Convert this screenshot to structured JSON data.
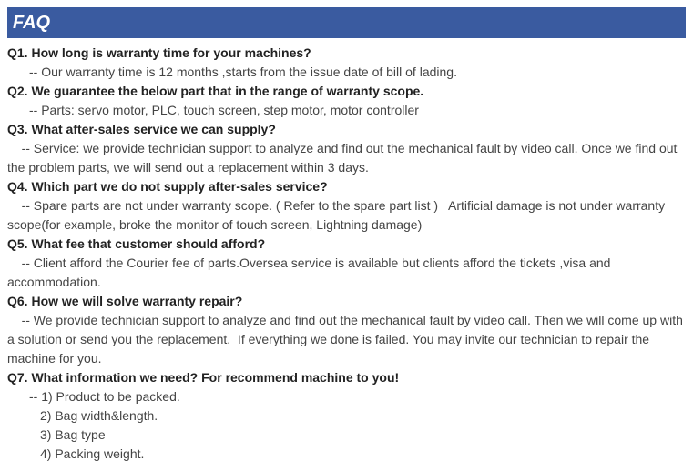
{
  "header": {
    "title": "FAQ"
  },
  "faq": [
    {
      "q": "Q1. How long is warranty time for your machines?",
      "a": [
        "-- Our warranty time is 12 months ,starts from the issue date of bill of lading."
      ],
      "indents": [
        "indent1"
      ]
    },
    {
      "q": "Q2. We guarantee the below part that in the range of warranty scope.",
      "a": [
        "-- Parts: servo motor, PLC, touch screen, step motor, motor controller"
      ],
      "indents": [
        "indent1"
      ]
    },
    {
      "q": "Q3. What after-sales service we can supply?",
      "a": [
        "    -- Service: we provide technician support to analyze and find out the mechanical fault by video call. Once we find out the problem parts, we will send out a replacement within 3 days."
      ],
      "indents": [
        ""
      ]
    },
    {
      "q": "Q4. Which part we do not supply after-sales service?",
      "a": [
        "    -- Spare parts are not under warranty scope. ( Refer to the spare part list )   Artificial damage is not under warranty scope(for example, broke the monitor of touch screen, Lightning damage)"
      ],
      "indents": [
        ""
      ]
    },
    {
      "q": "Q5. What fee that customer should afford?",
      "a": [
        "    -- Client afford the Courier fee of parts.Oversea service is available but clients afford the tickets ,visa and accommodation."
      ],
      "indents": [
        ""
      ]
    },
    {
      "q": "Q6. How we will solve warranty repair?",
      "a": [
        "    -- We provide technician support to analyze and find out the mechanical fault by video call. Then we will come up with a solution or send you the replacement.  If everything we done is failed. You may invite our technician to repair the machine for you."
      ],
      "indents": [
        ""
      ]
    },
    {
      "q": "Q7. What information we need? For recommend machine to you!",
      "a": [
        "-- 1) Product to be packed.",
        "2) Bag width&length.",
        "3) Bag type",
        "4) Packing weight."
      ],
      "indents": [
        "indent1",
        "indent2",
        "indent2",
        "indent2"
      ]
    }
  ]
}
